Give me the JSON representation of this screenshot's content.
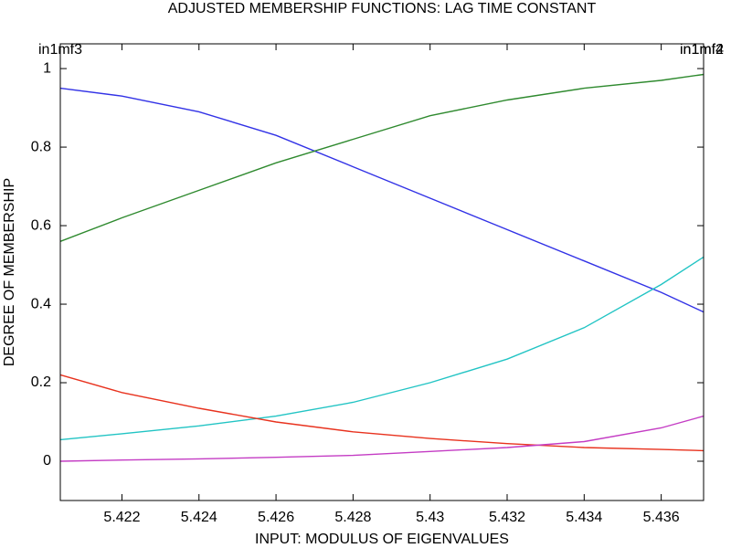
{
  "chart_data": {
    "type": "line",
    "title": "ADJUSTED MEMBERSHIP FUNCTIONS: LAG TIME CONSTANT",
    "x_label": "INPUT: MODULUS OF EIGENVALUES",
    "y_label": "DEGREE OF MEMBERSHIP",
    "mf_labels_left": [
      "in1mf3"
    ],
    "mf_labels_right": [
      "in1mf2",
      "in1mf4"
    ],
    "x": [
      5.4204,
      5.422,
      5.424,
      5.426,
      5.428,
      5.43,
      5.432,
      5.434,
      5.436,
      5.4371
    ],
    "series": [
      {
        "color": "#3232e6",
        "values": [
          0.95,
          0.93,
          0.89,
          0.83,
          0.75,
          0.67,
          0.59,
          0.51,
          0.43,
          0.38
        ]
      },
      {
        "color": "#2f8a2f",
        "values": [
          0.56,
          0.62,
          0.69,
          0.76,
          0.82,
          0.88,
          0.92,
          0.95,
          0.97,
          0.985
        ]
      },
      {
        "color": "#22c4c4",
        "values": [
          0.055,
          0.07,
          0.09,
          0.115,
          0.15,
          0.2,
          0.26,
          0.34,
          0.45,
          0.52
        ]
      },
      {
        "color": "#e8321e",
        "values": [
          0.22,
          0.175,
          0.135,
          0.1,
          0.075,
          0.058,
          0.045,
          0.035,
          0.03,
          0.027
        ]
      },
      {
        "color": "#c43cc4",
        "values": [
          0.0,
          0.003,
          0.006,
          0.01,
          0.015,
          0.025,
          0.035,
          0.05,
          0.085,
          0.115
        ]
      }
    ],
    "xlim": [
      5.4204,
      5.4371
    ],
    "ylim": [
      -0.1,
      1.063
    ],
    "xticks": [
      5.422,
      5.424,
      5.426,
      5.428,
      5.43,
      5.432,
      5.434,
      5.436
    ],
    "yticks": [
      0,
      0.2,
      0.4,
      0.6,
      0.8,
      1
    ]
  }
}
